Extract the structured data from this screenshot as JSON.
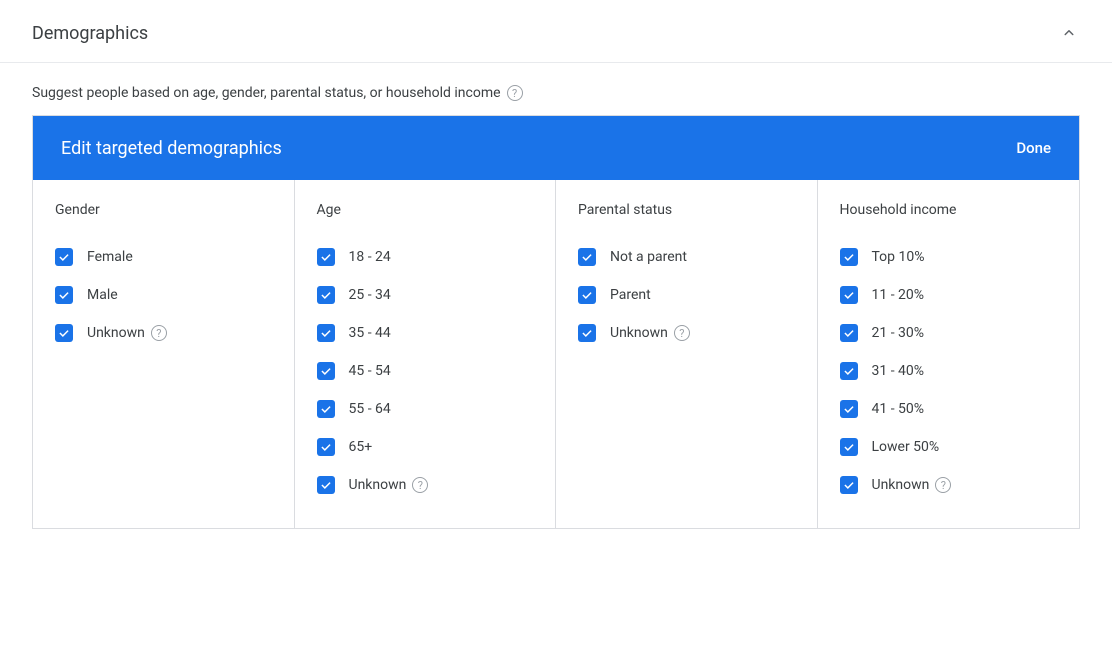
{
  "section": {
    "title": "Demographics",
    "subtitle": "Suggest people based on age, gender, parental status, or household income"
  },
  "editor": {
    "title": "Edit targeted demographics",
    "done_label": "Done"
  },
  "columns": [
    {
      "id": "gender",
      "title": "Gender",
      "options": [
        {
          "label": "Female",
          "checked": true,
          "help": false
        },
        {
          "label": "Male",
          "checked": true,
          "help": false
        },
        {
          "label": "Unknown",
          "checked": true,
          "help": true
        }
      ]
    },
    {
      "id": "age",
      "title": "Age",
      "options": [
        {
          "label": "18 - 24",
          "checked": true,
          "help": false
        },
        {
          "label": "25 - 34",
          "checked": true,
          "help": false
        },
        {
          "label": "35 - 44",
          "checked": true,
          "help": false
        },
        {
          "label": "45 - 54",
          "checked": true,
          "help": false
        },
        {
          "label": "55 - 64",
          "checked": true,
          "help": false
        },
        {
          "label": "65+",
          "checked": true,
          "help": false
        },
        {
          "label": "Unknown",
          "checked": true,
          "help": true
        }
      ]
    },
    {
      "id": "parental",
      "title": "Parental status",
      "options": [
        {
          "label": "Not a parent",
          "checked": true,
          "help": false
        },
        {
          "label": "Parent",
          "checked": true,
          "help": false
        },
        {
          "label": "Unknown",
          "checked": true,
          "help": true
        }
      ]
    },
    {
      "id": "income",
      "title": "Household income",
      "options": [
        {
          "label": "Top 10%",
          "checked": true,
          "help": false
        },
        {
          "label": "11 - 20%",
          "checked": true,
          "help": false
        },
        {
          "label": "21 - 30%",
          "checked": true,
          "help": false
        },
        {
          "label": "31 - 40%",
          "checked": true,
          "help": false
        },
        {
          "label": "41 - 50%",
          "checked": true,
          "help": false
        },
        {
          "label": "Lower 50%",
          "checked": true,
          "help": false
        },
        {
          "label": "Unknown",
          "checked": true,
          "help": true
        }
      ]
    }
  ],
  "colors": {
    "accent": "#1a73e8",
    "border": "#dadce0",
    "text": "#3c4043",
    "muted": "#9aa0a6"
  }
}
